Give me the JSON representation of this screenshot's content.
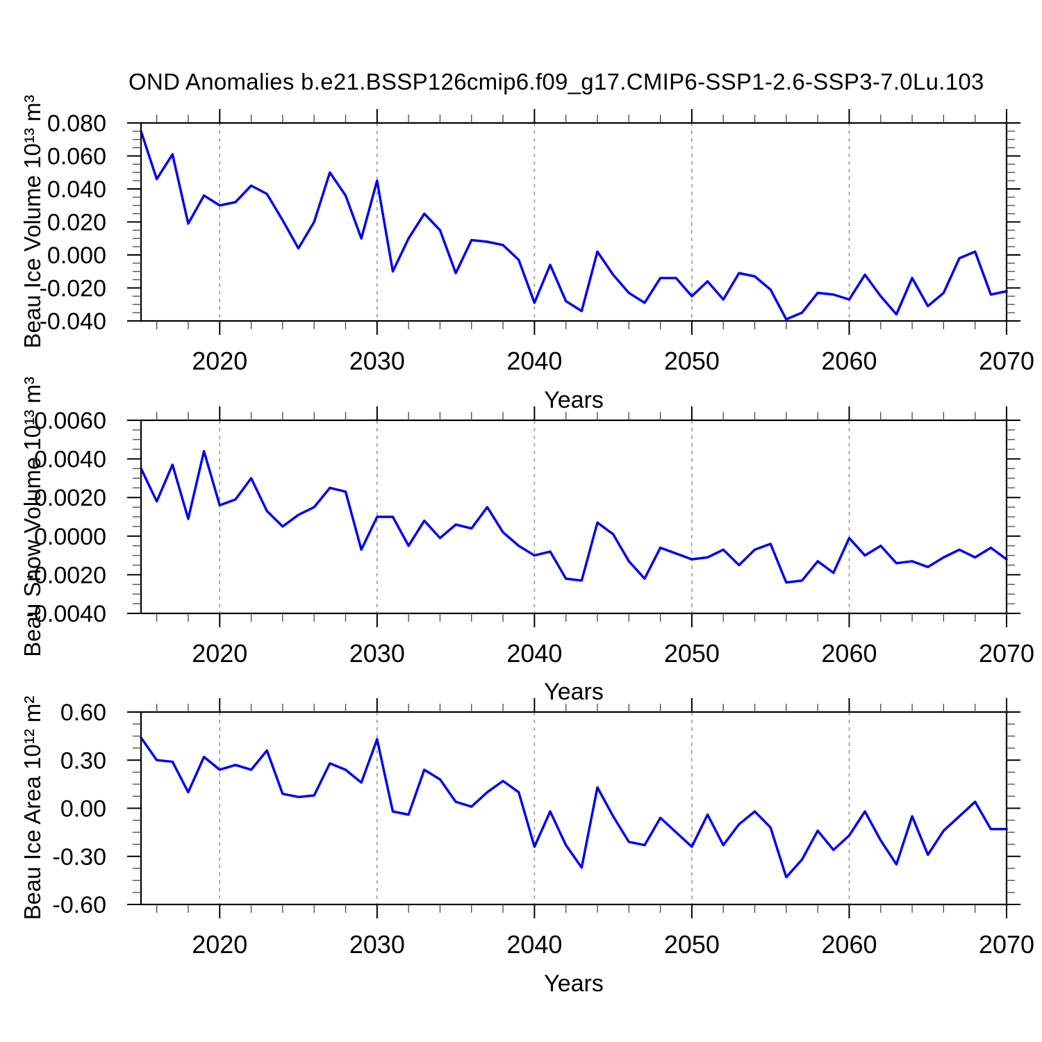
{
  "title": "OND Anomalies b.e21.BSSP126cmip6.f09_g17.CMIP6-SSP1-2.6-SSP3-7.0Lu.103",
  "style": {
    "line_color": "#0000f0",
    "grid_color": "#999999",
    "axis_color": "#000000",
    "minor_tick_color": "#444444",
    "background": "#ffffff"
  },
  "chart_data": [
    {
      "type": "line",
      "title": "",
      "ylabel": "Beau Ice Volume 10¹³ m³",
      "xlabel": "Years",
      "legend_position": "none",
      "grid": "vertical-dashed",
      "x": [
        2015,
        2016,
        2017,
        2018,
        2019,
        2020,
        2021,
        2022,
        2023,
        2024,
        2025,
        2026,
        2027,
        2028,
        2029,
        2030,
        2031,
        2032,
        2033,
        2034,
        2035,
        2036,
        2037,
        2038,
        2039,
        2040,
        2041,
        2042,
        2043,
        2044,
        2045,
        2046,
        2047,
        2048,
        2049,
        2050,
        2051,
        2052,
        2053,
        2054,
        2055,
        2056,
        2057,
        2058,
        2059,
        2060,
        2061,
        2062,
        2063,
        2064,
        2065,
        2066,
        2067,
        2068,
        2069,
        2070
      ],
      "values": [
        0.075,
        0.046,
        0.061,
        0.019,
        0.036,
        0.03,
        0.032,
        0.042,
        0.037,
        0.021,
        0.004,
        0.02,
        0.05,
        0.036,
        0.01,
        0.045,
        -0.01,
        0.01,
        0.025,
        0.015,
        -0.011,
        0.009,
        0.008,
        0.006,
        -0.003,
        -0.029,
        -0.006,
        -0.028,
        -0.034,
        0.002,
        -0.012,
        -0.023,
        -0.029,
        -0.014,
        -0.014,
        -0.025,
        -0.016,
        -0.027,
        -0.011,
        -0.013,
        -0.021,
        -0.039,
        -0.035,
        -0.023,
        -0.024,
        -0.027,
        -0.012,
        -0.025,
        -0.036,
        -0.014,
        -0.031,
        -0.023,
        -0.002,
        0.002,
        -0.024,
        -0.022
      ],
      "xlim": [
        2015,
        2070
      ],
      "ylim": [
        -0.04,
        0.08
      ],
      "yticks": [
        0.08,
        0.06,
        0.04,
        0.02,
        0.0,
        -0.02,
        -0.04
      ],
      "ytick_labels": [
        "0.080",
        "0.060",
        "0.040",
        "0.020",
        "0.000",
        "-0.020",
        "-0.040"
      ],
      "y_major_step": 0.02,
      "y_minor_step": 0.005,
      "xticks": [
        2020,
        2030,
        2040,
        2050,
        2060,
        2070
      ],
      "xtick_labels": [
        "2020",
        "2030",
        "2040",
        "2050",
        "2060",
        "2070"
      ],
      "x_minor_step": 2,
      "grid_x": [
        2020,
        2030,
        2040,
        2050,
        2060
      ]
    },
    {
      "type": "line",
      "title": "",
      "ylabel": "Beau Snow Volume 10¹³ m³",
      "xlabel": "Years",
      "legend_position": "none",
      "grid": "vertical-dashed",
      "x": [
        2015,
        2016,
        2017,
        2018,
        2019,
        2020,
        2021,
        2022,
        2023,
        2024,
        2025,
        2026,
        2027,
        2028,
        2029,
        2030,
        2031,
        2032,
        2033,
        2034,
        2035,
        2036,
        2037,
        2038,
        2039,
        2040,
        2041,
        2042,
        2043,
        2044,
        2045,
        2046,
        2047,
        2048,
        2049,
        2050,
        2051,
        2052,
        2053,
        2054,
        2055,
        2056,
        2057,
        2058,
        2059,
        2060,
        2061,
        2062,
        2063,
        2064,
        2065,
        2066,
        2067,
        2068,
        2069,
        2070
      ],
      "values": [
        0.0035,
        0.0018,
        0.0037,
        0.0009,
        0.0044,
        0.0016,
        0.0019,
        0.003,
        0.0013,
        0.0005,
        0.0011,
        0.0015,
        0.0025,
        0.0023,
        -0.0007,
        0.001,
        0.001,
        -0.0005,
        0.0008,
        -0.0001,
        0.0006,
        0.0004,
        0.0015,
        0.0002,
        -0.0005,
        -0.001,
        -0.0008,
        -0.0022,
        -0.0023,
        0.0007,
        0.0001,
        -0.0013,
        -0.0022,
        -0.0006,
        -0.0009,
        -0.0012,
        -0.0011,
        -0.0007,
        -0.0015,
        -0.0007,
        -0.0004,
        -0.0024,
        -0.0023,
        -0.0013,
        -0.0019,
        -0.0001,
        -0.001,
        -0.0005,
        -0.0014,
        -0.0013,
        -0.0016,
        -0.0011,
        -0.0007,
        -0.0011,
        -0.0006,
        -0.0012
      ],
      "xlim": [
        2015,
        2070
      ],
      "ylim": [
        -0.004,
        0.006
      ],
      "yticks": [
        0.006,
        0.004,
        0.002,
        0.0,
        -0.002,
        -0.004
      ],
      "ytick_labels": [
        "0.0060",
        "0.0040",
        "0.0020",
        "0.0000",
        "-0.0020",
        "-0.0040"
      ],
      "y_major_step": 0.002,
      "y_minor_step": 0.0005,
      "xticks": [
        2020,
        2030,
        2040,
        2050,
        2060,
        2070
      ],
      "xtick_labels": [
        "2020",
        "2030",
        "2040",
        "2050",
        "2060",
        "2070"
      ],
      "x_minor_step": 2,
      "grid_x": [
        2020,
        2030,
        2040,
        2050,
        2060
      ]
    },
    {
      "type": "line",
      "title": "",
      "ylabel": "Beau Ice Area 10¹² m²",
      "xlabel": "Years",
      "legend_position": "none",
      "grid": "vertical-dashed",
      "x": [
        2015,
        2016,
        2017,
        2018,
        2019,
        2020,
        2021,
        2022,
        2023,
        2024,
        2025,
        2026,
        2027,
        2028,
        2029,
        2030,
        2031,
        2032,
        2033,
        2034,
        2035,
        2036,
        2037,
        2038,
        2039,
        2040,
        2041,
        2042,
        2043,
        2044,
        2045,
        2046,
        2047,
        2048,
        2049,
        2050,
        2051,
        2052,
        2053,
        2054,
        2055,
        2056,
        2057,
        2058,
        2059,
        2060,
        2061,
        2062,
        2063,
        2064,
        2065,
        2066,
        2067,
        2068,
        2069,
        2070
      ],
      "values": [
        0.44,
        0.3,
        0.29,
        0.1,
        0.32,
        0.24,
        0.27,
        0.24,
        0.36,
        0.09,
        0.07,
        0.08,
        0.28,
        0.24,
        0.16,
        0.43,
        -0.02,
        -0.04,
        0.24,
        0.18,
        0.04,
        0.01,
        0.1,
        0.17,
        0.1,
        -0.24,
        -0.02,
        -0.23,
        -0.37,
        0.13,
        -0.05,
        -0.21,
        -0.23,
        -0.06,
        -0.15,
        -0.24,
        -0.04,
        -0.23,
        -0.1,
        -0.02,
        -0.12,
        -0.43,
        -0.32,
        -0.14,
        -0.26,
        -0.17,
        -0.02,
        -0.2,
        -0.35,
        -0.05,
        -0.29,
        -0.14,
        -0.05,
        0.04,
        -0.13,
        -0.13
      ],
      "xlim": [
        2015,
        2070
      ],
      "ylim": [
        -0.6,
        0.6
      ],
      "yticks": [
        0.6,
        0.3,
        0.0,
        -0.3,
        -0.6
      ],
      "ytick_labels": [
        "0.60",
        "0.30",
        "0.00",
        "-0.30",
        "-0.60"
      ],
      "y_major_step": 0.3,
      "y_minor_step": 0.075,
      "xticks": [
        2020,
        2030,
        2040,
        2050,
        2060,
        2070
      ],
      "xtick_labels": [
        "2020",
        "2030",
        "2040",
        "2050",
        "2060",
        "2070"
      ],
      "x_minor_step": 2,
      "grid_x": [
        2020,
        2030,
        2040,
        2050,
        2060
      ]
    }
  ]
}
